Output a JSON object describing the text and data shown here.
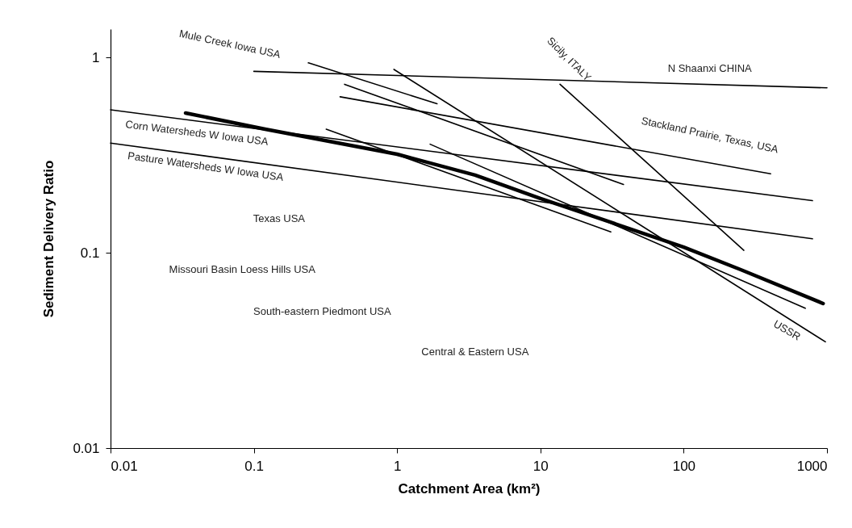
{
  "chart_data": {
    "type": "line",
    "xlabel": "Catchment Area (km²)",
    "ylabel": "Sediment Delivery Ratio",
    "log": "xy",
    "xlim": [
      0.01,
      1000
    ],
    "ylim": [
      0.01,
      1.4
    ],
    "xticks": [
      0.01,
      0.1,
      1,
      10,
      100,
      1000
    ],
    "yticks": [
      0.01,
      0.1,
      1
    ],
    "series": [
      {
        "color": "#000000",
        "x": [
          0.0334,
          0.12,
          1,
          3.5,
          10,
          100,
          250,
          940
        ],
        "values": [
          0.52,
          0.43,
          0.32,
          0.25,
          0.19,
          0.107,
          0.082,
          0.055
        ]
      },
      {
        "color": "#000000",
        "x": [
          0.1,
          1000
        ],
        "values": [
          0.85,
          0.7
        ]
      },
      {
        "color": "#000000",
        "x": [
          0.24,
          1.9
        ],
        "values": [
          0.94,
          0.58
        ]
      },
      {
        "color": "#000000",
        "x": [
          0.95,
          975
        ],
        "values": [
          0.87,
          0.035
        ]
      },
      {
        "color": "#000000",
        "x": [
          0.43,
          38
        ],
        "values": [
          0.73,
          0.224
        ]
      },
      {
        "color": "#000000",
        "x": [
          0.4,
          404
        ],
        "values": [
          0.63,
          0.254
        ]
      },
      {
        "color": "#000000",
        "x": [
          13.7,
          263
        ],
        "values": [
          0.73,
          0.103
        ]
      },
      {
        "color": "#000000",
        "x": [
          0.01,
          792
        ],
        "values": [
          0.54,
          0.185
        ]
      },
      {
        "color": "#000000",
        "x": [
          0.01,
          792
        ],
        "values": [
          0.365,
          0.118
        ]
      },
      {
        "color": "#000000",
        "x": [
          0.32,
          31
        ],
        "values": [
          0.43,
          0.128
        ]
      },
      {
        "color": "#000000",
        "x": [
          1.7,
          705
        ],
        "values": [
          0.36,
          0.052
        ]
      }
    ],
    "annotations": [
      "Mule Creek Iowa USA",
      "N Shaanxi CHINA",
      "Sicily, ITALY",
      "Stackland Prairie, Texas, USA",
      "Corn Watersheds W Iowa USA",
      "Pasture Watersheds W Iowa USA",
      "Texas USA",
      "Missouri Basin Loess Hills USA",
      "South-eastern Piedmont USA",
      "Central & Eastern USA",
      "USSR"
    ]
  }
}
